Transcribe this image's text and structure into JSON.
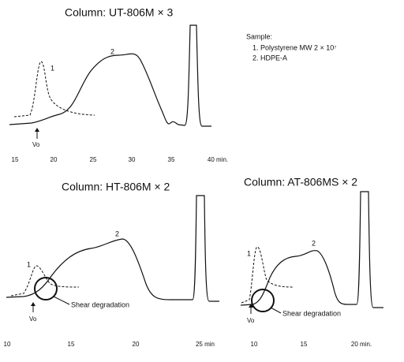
{
  "panels": [
    {
      "title": "Column: UT-806M × 3",
      "ticks": [
        "15",
        "20",
        "25",
        "30",
        "35",
        "40 min."
      ],
      "peak_labels": [
        "1",
        "2"
      ],
      "marker": "Vo"
    },
    {
      "title": "Column: HT-806M × 2",
      "ticks": [
        "10",
        "15",
        "20",
        "25 min"
      ],
      "peak_labels": [
        "1",
        "2"
      ],
      "marker": "Vo",
      "annotation": "Shear degradation"
    },
    {
      "title": "Column: AT-806MS × 2",
      "ticks": [
        "10",
        "15",
        "20 min."
      ],
      "peak_labels": [
        "1",
        "2"
      ],
      "marker": "Vo",
      "annotation": "Shear degradation"
    }
  ],
  "sample": {
    "heading": "Sample:",
    "items": [
      "1. Polystyrene MW 2 × 10⁷",
      "2. HDPE-A"
    ]
  }
}
